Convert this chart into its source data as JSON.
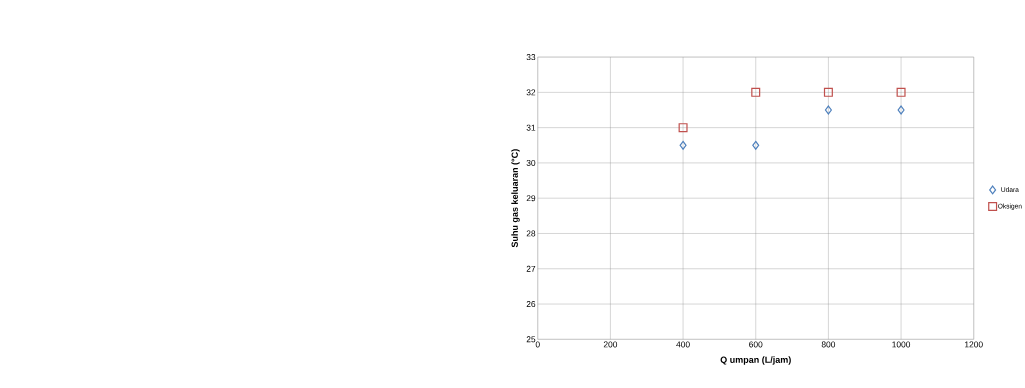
{
  "chart_data": {
    "type": "scatter",
    "xlabel": "Q  umpan (L/jam)",
    "ylabel": "Suhu gas keluaran (°C)",
    "xlim": [
      0,
      1200
    ],
    "ylim": [
      25,
      33
    ],
    "xticks": [
      0,
      200,
      400,
      600,
      800,
      1000,
      1200
    ],
    "yticks": [
      25,
      26,
      27,
      28,
      29,
      30,
      31,
      32,
      33
    ],
    "grid": true,
    "legend": "right",
    "series": [
      {
        "name": "Udara",
        "color": "#4f81bd",
        "marker": "diamond",
        "x": [
          400,
          600,
          800,
          1000
        ],
        "values": [
          30.5,
          30.5,
          31.5,
          31.5
        ]
      },
      {
        "name": "Oksigen",
        "color": "#c0504d",
        "marker": "square",
        "x": [
          400,
          600,
          800,
          1000
        ],
        "values": [
          31,
          32,
          32,
          32
        ]
      }
    ]
  }
}
